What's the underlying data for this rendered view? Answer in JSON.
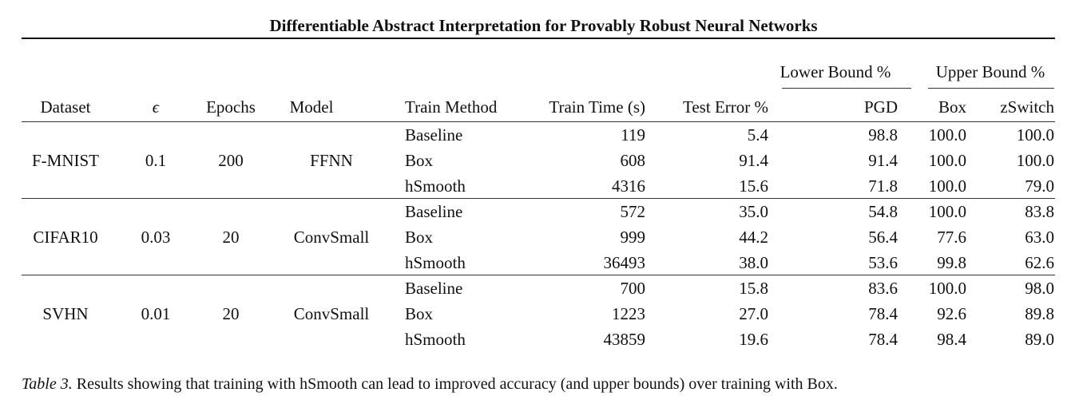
{
  "title": "Differentiable Abstract Interpretation for Provably Robust Neural Networks",
  "group_headers": {
    "lower": "Lower Bound %",
    "upper": "Upper Bound %"
  },
  "columns": [
    "Dataset",
    "ϵ",
    "Epochs",
    "Model",
    "Train Method",
    "Train Time (s)",
    "Test Error %",
    "PGD",
    "Box",
    "zSwitch"
  ],
  "groups": [
    {
      "dataset": "F-MNIST",
      "epsilon": "0.1",
      "epochs": "200",
      "model": "FFNN",
      "rows": [
        {
          "method": "Baseline",
          "time": "119",
          "error": "5.4",
          "pgd": "98.8",
          "box": "100.0",
          "zswitch": "100.0"
        },
        {
          "method": "Box",
          "time": "608",
          "error": "91.4",
          "pgd": "91.4",
          "box": "100.0",
          "zswitch": "100.0"
        },
        {
          "method": "hSmooth",
          "time": "4316",
          "error": "15.6",
          "pgd": "71.8",
          "box": "100.0",
          "zswitch": "79.0"
        }
      ]
    },
    {
      "dataset": "CIFAR10",
      "epsilon": "0.03",
      "epochs": "20",
      "model": "ConvSmall",
      "rows": [
        {
          "method": "Baseline",
          "time": "572",
          "error": "35.0",
          "pgd": "54.8",
          "box": "100.0",
          "zswitch": "83.8"
        },
        {
          "method": "Box",
          "time": "999",
          "error": "44.2",
          "pgd": "56.4",
          "box": "77.6",
          "zswitch": "63.0"
        },
        {
          "method": "hSmooth",
          "time": "36493",
          "error": "38.0",
          "pgd": "53.6",
          "box": "99.8",
          "zswitch": "62.6"
        }
      ]
    },
    {
      "dataset": "SVHN",
      "epsilon": "0.01",
      "epochs": "20",
      "model": "ConvSmall",
      "rows": [
        {
          "method": "Baseline",
          "time": "700",
          "error": "15.8",
          "pgd": "83.6",
          "box": "100.0",
          "zswitch": "98.0"
        },
        {
          "method": "Box",
          "time": "1223",
          "error": "27.0",
          "pgd": "78.4",
          "box": "92.6",
          "zswitch": "89.8"
        },
        {
          "method": "hSmooth",
          "time": "43859",
          "error": "19.6",
          "pgd": "78.4",
          "box": "98.4",
          "zswitch": "89.0"
        }
      ]
    }
  ],
  "caption": {
    "label": "Table 3.",
    "text": "Results showing that training with hSmooth can lead to improved accuracy (and upper bounds) over training with Box."
  }
}
